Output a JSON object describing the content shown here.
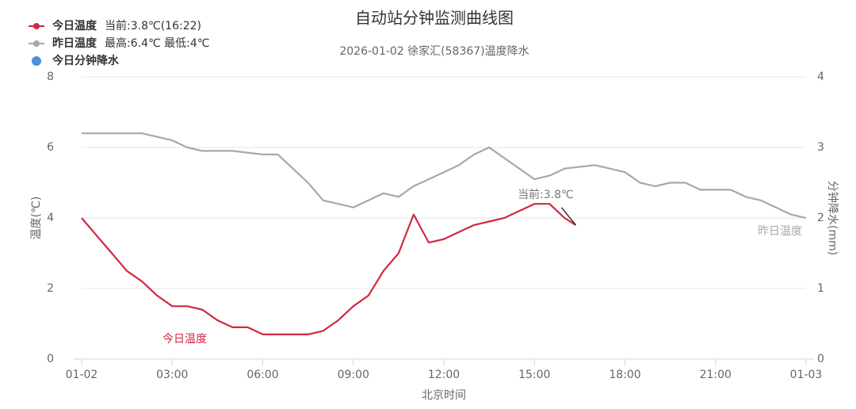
{
  "chart_data": {
    "type": "line",
    "title": "自动站分钟监测曲线图",
    "subtitle": "2026-01-02 徐家汇(58367)温度降水",
    "x_label": "北京时间",
    "y_label": "温度(℃)",
    "y2_label": "分钟降水(mm)",
    "annotation": "当前:3.8℃",
    "xlim": [
      0,
      24
    ],
    "xticks": [
      {
        "value": 0,
        "label": "01-02"
      },
      {
        "value": 3,
        "label": "03:00"
      },
      {
        "value": 6,
        "label": "06:00"
      },
      {
        "value": 9,
        "label": "09:00"
      },
      {
        "value": 12,
        "label": "12:00"
      },
      {
        "value": 15,
        "label": "15:00"
      },
      {
        "value": 18,
        "label": "18:00"
      },
      {
        "value": 21,
        "label": "21:00"
      },
      {
        "value": 24,
        "label": "01-03"
      }
    ],
    "ylim": [
      0,
      8
    ],
    "yticks": [
      0,
      2,
      4,
      6,
      8
    ],
    "y2lim": [
      0,
      4
    ],
    "y2ticks": [
      0,
      1,
      2,
      3,
      4
    ],
    "grid": true,
    "series": [
      {
        "name": "今日温度",
        "legend_note": "当前:3.8℃(16:22)",
        "color": "#d0293f",
        "x": [
          0,
          0.5,
          1,
          1.5,
          2,
          2.5,
          3,
          3.5,
          4,
          4.5,
          5,
          5.5,
          6,
          6.5,
          7,
          7.5,
          8,
          8.5,
          9,
          9.5,
          10,
          10.5,
          11,
          11.5,
          12,
          12.5,
          13,
          13.5,
          14,
          14.5,
          15,
          15.5,
          16,
          16.37
        ],
        "values": [
          4.0,
          3.5,
          3.0,
          2.5,
          2.2,
          1.8,
          1.5,
          1.5,
          1.4,
          1.1,
          0.9,
          0.9,
          0.7,
          0.7,
          0.7,
          0.7,
          0.8,
          1.1,
          1.5,
          1.8,
          2.5,
          3.0,
          4.1,
          3.3,
          3.4,
          3.6,
          3.8,
          3.9,
          4.0,
          4.2,
          4.4,
          4.4,
          4.0,
          3.8
        ]
      },
      {
        "name": "昨日温度",
        "legend_note": "最高:6.4℃ 最低:4℃",
        "color": "#a8a8a8",
        "x": [
          0,
          1,
          2,
          3,
          3.5,
          4,
          5,
          6,
          6.5,
          7,
          7.5,
          8,
          8.5,
          9,
          9.5,
          10,
          10.5,
          11,
          11.5,
          12,
          12.5,
          13,
          13.5,
          14,
          14.5,
          15,
          15.5,
          16,
          17,
          17.5,
          18,
          18.5,
          19,
          19.5,
          20,
          20.5,
          21,
          21.5,
          22,
          22.5,
          23,
          23.5,
          24
        ],
        "values": [
          6.4,
          6.4,
          6.4,
          6.2,
          6.0,
          5.9,
          5.9,
          5.8,
          5.8,
          5.4,
          5.0,
          4.5,
          4.4,
          4.3,
          4.5,
          4.7,
          4.6,
          4.9,
          5.1,
          5.3,
          5.5,
          5.8,
          6.0,
          5.7,
          5.4,
          5.1,
          5.2,
          5.4,
          5.5,
          5.4,
          5.3,
          5.0,
          4.9,
          5.0,
          5.0,
          4.8,
          4.8,
          4.8,
          4.6,
          4.5,
          4.3,
          4.1,
          4.0
        ]
      },
      {
        "name": "今日分钟降水",
        "color": "#4a90e2",
        "axis": "y2",
        "x": [],
        "values": []
      }
    ]
  }
}
